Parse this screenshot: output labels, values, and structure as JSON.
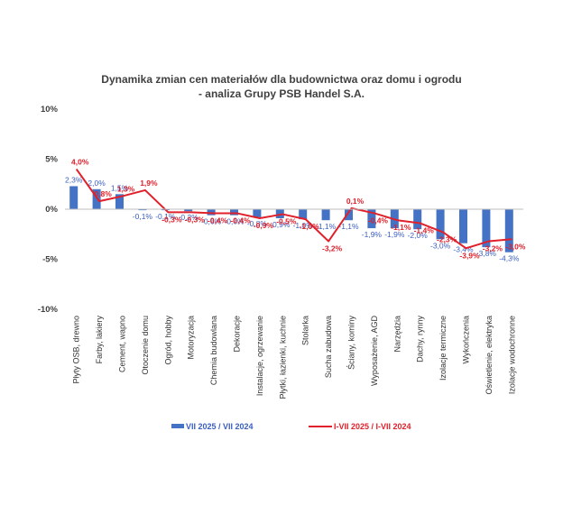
{
  "chart_data": {
    "type": "bar",
    "title": "Dynamika zmian cen materiałów dla budownictwa oraz domu i ogrodu",
    "subtitle": "- analiza Grupy PSB Handel S.A.",
    "categories": [
      "Płyty OSB, drewno",
      "Farby, lakiery",
      "Cement, wapno",
      "Otoczenie domu",
      "Ogród, hobby",
      "Motoryzacja",
      "Chemia budowlana",
      "Dekoracje",
      "Instalacje, ogrzewanie",
      "Płytki, łazienki, kuchnie",
      "Stolarka",
      "Sucha zabudowa",
      "Ściany, kominy",
      "Wyposażenie, AGD",
      "Narzędzia",
      "Dachy, rynny",
      "Izolacje termiczne",
      "Wykończenia",
      "Oświetlenie, elektryka",
      "Izolacje wodochronne"
    ],
    "series": [
      {
        "name": "VII 2025 / VII 2024",
        "type": "bar",
        "color": "#4472C4",
        "values": [
          2.3,
          2.0,
          1.5,
          -0.1,
          -0.1,
          -0.2,
          -0.6,
          -0.6,
          -0.8,
          -0.9,
          -1.0,
          -1.1,
          -1.1,
          -1.9,
          -1.9,
          -2.0,
          -3.0,
          -3.4,
          -3.8,
          -4.3
        ],
        "labels": [
          "2,3%",
          "2,0%",
          "1,5%",
          "-0,1%",
          "-0,1%",
          "-0,2%",
          "-0,6%",
          "-0,6%",
          "-0,8%",
          "-0,9%",
          "-1,0%",
          "-1,1%",
          "-1,1%",
          "-1,9%",
          "-1,9%",
          "-2,0%",
          "-3,0%",
          "-3,4%",
          "-3,8%",
          "-4,3%"
        ]
      },
      {
        "name": "I-VII 2025 / I-VII 2024",
        "type": "line",
        "color": "#E0202A",
        "values": [
          4.0,
          0.8,
          1.3,
          1.9,
          -0.3,
          -0.3,
          -0.4,
          -0.4,
          -0.9,
          -0.5,
          -1.0,
          -3.2,
          0.1,
          -0.4,
          -1.1,
          -1.4,
          -2.3,
          -3.9,
          -3.2,
          -3.0
        ],
        "labels": [
          "4,0%",
          "0,8%",
          "1,3%",
          "1,9%",
          "-0,3%",
          "-0,3%",
          "-0,4%",
          "-0,4%",
          "-0,9%",
          "-0,5%",
          "-1,0%",
          "-3,2%",
          "0,1%",
          "-0,4%",
          "-1,1%",
          "-1,4%",
          "-2,3%",
          "-3,9%",
          "-3,2%",
          "-3,0%"
        ]
      }
    ],
    "ylim": [
      -10,
      10
    ],
    "yticks": [
      10,
      5,
      0,
      -5,
      -10
    ],
    "ytick_labels": [
      "10%",
      "5%",
      "0%",
      "-5%",
      "-10%"
    ],
    "grid": false,
    "legend_position": "bottom"
  }
}
